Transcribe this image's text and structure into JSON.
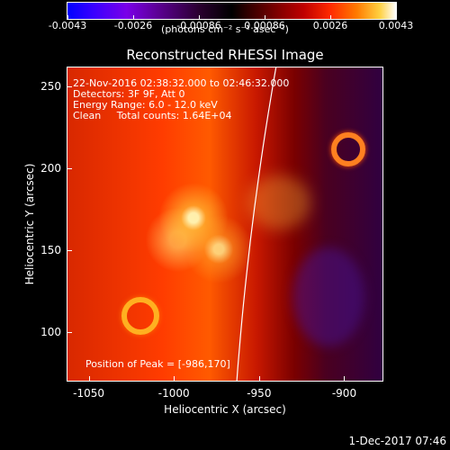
{
  "colorbar": {
    "tick_labels": [
      "-0.0043",
      "-0.0026",
      "-0.00086",
      "0.00086",
      "0.0026",
      "0.0043"
    ],
    "units_label": "(photons cm⁻² s⁻¹ asec⁻²)"
  },
  "chart_data": {
    "type": "heatmap",
    "title": "Reconstructed RHESSI Image",
    "xlabel": "Heliocentric X (arcsec)",
    "ylabel": "Heliocentric Y (arcsec)",
    "xlim": [
      -1063,
      -877
    ],
    "ylim": [
      70,
      262
    ],
    "x_ticks": [
      "-1050",
      "-1000",
      "-950",
      "-900"
    ],
    "y_ticks": [
      "100",
      "150",
      "200",
      "250"
    ],
    "x_tick_values": [
      -1050,
      -1000,
      -950,
      -900
    ],
    "y_tick_values": [
      100,
      150,
      200,
      250
    ],
    "color_range": [
      -0.0043,
      0.0043
    ],
    "peak_position": [
      -986,
      170
    ],
    "annotations": [
      "22-Nov-2016 02:38:32.000 to 02:46:32.000",
      "Detectors: 3F 9F, Att 0",
      "Energy Range: 6.0 - 12.0 keV",
      "Clean     Total counts: 1.64E+04"
    ],
    "peak_label": "Position of Peak = [-986,170]",
    "limb_line_color": "#ffffff"
  },
  "footer": {
    "timestamp": "1-Dec-2017 07:46"
  }
}
